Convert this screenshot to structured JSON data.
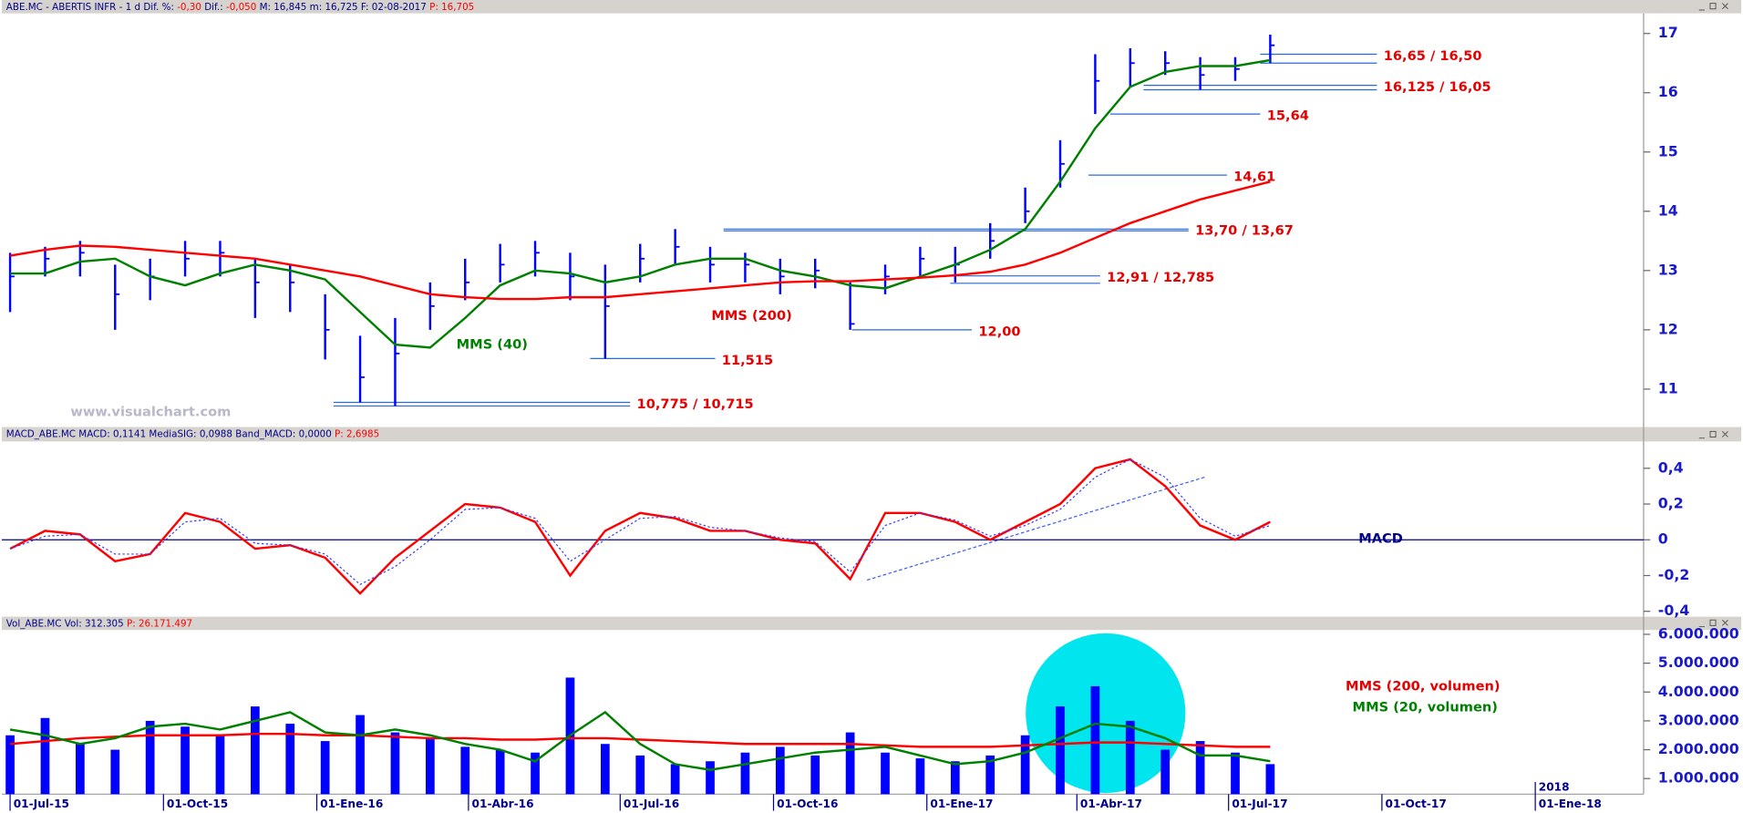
{
  "chart_data": {
    "type": "stock",
    "x": [
      "2015-07-01",
      "2015-07-22",
      "2015-08-12",
      "2015-09-02",
      "2015-09-23",
      "2015-10-14",
      "2015-11-04",
      "2015-11-25",
      "2015-12-16",
      "2016-01-06",
      "2016-01-27",
      "2016-02-17",
      "2016-03-09",
      "2016-03-30",
      "2016-04-20",
      "2016-05-11",
      "2016-06-01",
      "2016-06-22",
      "2016-07-13",
      "2016-08-03",
      "2016-08-24",
      "2016-09-14",
      "2016-10-05",
      "2016-10-26",
      "2016-11-16",
      "2016-12-07",
      "2016-12-28",
      "2017-01-18",
      "2017-02-08",
      "2017-03-01",
      "2017-03-22",
      "2017-04-12",
      "2017-05-03",
      "2017-05-24",
      "2017-06-14",
      "2017-07-05",
      "2017-07-26"
    ],
    "xlim": [
      "2015-06-26",
      "2018-03-07"
    ],
    "xticks": [
      {
        "value": "2015-07-01",
        "label": "01-Jul-15"
      },
      {
        "value": "2015-10-01",
        "label": "01-Oct-15"
      },
      {
        "value": "2016-01-01",
        "label": "01-Ene-16"
      },
      {
        "value": "2016-04-01",
        "label": "01-Abr-16"
      },
      {
        "value": "2016-07-01",
        "label": "01-Jul-16"
      },
      {
        "value": "2016-10-01",
        "label": "01-Oct-16"
      },
      {
        "value": "2017-01-01",
        "label": "01-Ene-17"
      },
      {
        "value": "2017-04-01",
        "label": "01-Abr-17"
      },
      {
        "value": "2017-07-01",
        "label": "01-Jul-17"
      },
      {
        "value": "2017-10-01",
        "label": "01-Oct-17"
      },
      {
        "value": "2018-01-01",
        "label": "01-Ene-18"
      }
    ],
    "year_marker": {
      "value": "2018-01-01",
      "label": "2018"
    },
    "panels": [
      {
        "header": [
          {
            "text": "ABE.MC - ABERTIS INFR - 1 d  Dif. %: ",
            "color": "#00008b"
          },
          {
            "text": "-0,30",
            "color": "#ff0000"
          },
          {
            "text": "  Dif.: ",
            "color": "#00008b"
          },
          {
            "text": "-0,050",
            "color": "#ff0000"
          },
          {
            "text": "  M: 16,845  m: 16,725  F: 02-08-2017  ",
            "color": "#00008b"
          },
          {
            "text": "P: 16,705",
            "color": "#ff0000"
          }
        ],
        "ylim": [
          10.36,
          17.34
        ],
        "yticks": [
          11,
          12,
          13,
          14,
          15,
          16,
          17
        ],
        "watermark": "www.visualchart.com",
        "series": [
          {
            "type": "ohlc",
            "color": "#0000ff",
            "high": [
              13.3,
              13.4,
              13.5,
              13.1,
              13.2,
              13.5,
              13.5,
              13.2,
              13.1,
              12.6,
              11.9,
              12.2,
              12.8,
              13.2,
              13.45,
              13.5,
              13.3,
              13.1,
              13.45,
              13.7,
              13.4,
              13.3,
              13.2,
              13.2,
              12.8,
              13.1,
              13.4,
              13.4,
              13.8,
              14.4,
              15.2,
              16.65,
              16.75,
              16.7,
              16.6,
              16.6,
              16.98
            ],
            "low": [
              12.3,
              12.9,
              12.9,
              12.0,
              12.5,
              12.9,
              12.9,
              12.2,
              12.3,
              11.5,
              10.775,
              10.715,
              12.0,
              12.5,
              12.8,
              12.9,
              12.5,
              11.515,
              12.8,
              13.1,
              12.8,
              12.8,
              12.6,
              12.7,
              12.0,
              12.6,
              12.9,
              12.8,
              13.2,
              13.8,
              14.4,
              15.64,
              16.1,
              16.3,
              16.05,
              16.2,
              16.5
            ],
            "close": [
              12.9,
              13.2,
              13.3,
              12.6,
              12.9,
              13.2,
              13.3,
              12.8,
              12.8,
              12.0,
              11.2,
              11.6,
              12.4,
              12.8,
              13.1,
              13.3,
              12.9,
              12.4,
              13.2,
              13.4,
              13.1,
              13.1,
              12.9,
              13.0,
              12.1,
              12.9,
              13.2,
              13.1,
              13.5,
              14.0,
              14.8,
              16.2,
              16.5,
              16.5,
              16.3,
              16.4,
              16.8
            ]
          },
          {
            "type": "line",
            "name": "MMS (40)",
            "color": "#008000",
            "values": [
              12.95,
              12.95,
              13.15,
              13.2,
              12.9,
              12.75,
              12.95,
              13.1,
              13.0,
              12.85,
              12.3,
              11.75,
              11.7,
              12.2,
              12.75,
              13.0,
              12.95,
              12.8,
              12.9,
              13.1,
              13.2,
              13.2,
              13.0,
              12.9,
              12.75,
              12.7,
              12.9,
              13.1,
              13.35,
              13.7,
              14.5,
              15.4,
              16.1,
              16.35,
              16.45,
              16.45,
              16.55
            ]
          },
          {
            "type": "line",
            "name": "MMS (200)",
            "color": "#ff0000",
            "values": [
              13.25,
              13.35,
              13.42,
              13.4,
              13.35,
              13.3,
              13.25,
              13.2,
              13.1,
              13.0,
              12.9,
              12.75,
              12.6,
              12.55,
              12.52,
              12.52,
              12.55,
              12.55,
              12.6,
              12.65,
              12.7,
              12.75,
              12.8,
              12.82,
              12.82,
              12.85,
              12.88,
              12.92,
              12.98,
              13.1,
              13.3,
              13.55,
              13.8,
              14.0,
              14.2,
              14.35,
              14.5
            ]
          }
        ],
        "levels": [
          {
            "label": "16,65 / 16,50",
            "values": [
              16.65,
              16.5
            ],
            "start": "2017-07-20",
            "end": "2017-09-28"
          },
          {
            "label": "16,125 / 16,05",
            "values": [
              16.125,
              16.05
            ],
            "start": "2017-05-11",
            "end": "2017-09-28"
          },
          {
            "label": "15,64",
            "values": [
              15.64
            ],
            "start": "2017-04-21",
            "end": "2017-07-20"
          },
          {
            "label": "14,61",
            "values": [
              14.61
            ],
            "start": "2017-04-08",
            "end": "2017-06-30"
          },
          {
            "label": "13,70 / 13,67",
            "values": [
              13.7,
              13.67
            ],
            "start": "2016-09-01",
            "end": "2017-06-07"
          },
          {
            "label": "12,91 / 12,785",
            "values": [
              12.91,
              12.785
            ],
            "start": "2017-01-15",
            "end": "2017-04-15"
          },
          {
            "label": "12,00",
            "values": [
              12.0
            ],
            "start": "2016-11-17",
            "end": "2017-01-28"
          },
          {
            "label": "11,515",
            "values": [
              11.515
            ],
            "start": "2016-06-13",
            "end": "2016-08-27"
          },
          {
            "label": "10,775 / 10,715",
            "values": [
              10.775,
              10.715
            ],
            "start": "2016-01-11",
            "end": "2016-07-07"
          }
        ]
      },
      {
        "header": [
          {
            "text": "MACD_ABE.MC  MACD: 0,1141  MediaSIG: 0,0988  Band_MACD: 0,0000  ",
            "color": "#00008b"
          },
          {
            "text": "P: 2,6985",
            "color": "#ff0000"
          }
        ],
        "label": "MACD",
        "ylim": [
          -0.43,
          0.55
        ],
        "yticks": [
          {
            "value": 0.4,
            "label": "0,4"
          },
          {
            "value": 0.2,
            "label": "0,2"
          },
          0,
          {
            "value": -0.2,
            "label": "-0,2"
          },
          {
            "value": -0.4,
            "label": "-0,4"
          }
        ],
        "hline": 0,
        "series": [
          {
            "type": "line",
            "color": "#ff0000",
            "values": [
              -0.05,
              0.05,
              0.03,
              -0.12,
              -0.08,
              0.15,
              0.1,
              -0.05,
              -0.03,
              -0.1,
              -0.3,
              -0.1,
              0.05,
              0.2,
              0.18,
              0.1,
              -0.2,
              0.05,
              0.15,
              0.12,
              0.05,
              0.05,
              0.0,
              -0.02,
              -0.22,
              0.15,
              0.15,
              0.1,
              0.0,
              0.1,
              0.2,
              0.4,
              0.45,
              0.3,
              0.08,
              0.0,
              0.1
            ]
          },
          {
            "type": "line",
            "color": "#3c3cff",
            "dashed": true,
            "values": [
              -0.05,
              0.02,
              0.03,
              -0.08,
              -0.08,
              0.1,
              0.12,
              -0.02,
              -0.03,
              -0.08,
              -0.25,
              -0.15,
              0.0,
              0.17,
              0.18,
              0.12,
              -0.12,
              0.0,
              0.12,
              0.13,
              0.07,
              0.05,
              0.01,
              -0.01,
              -0.18,
              0.08,
              0.15,
              0.11,
              0.02,
              0.08,
              0.17,
              0.35,
              0.45,
              0.35,
              0.12,
              0.02,
              0.08
            ]
          }
        ]
      },
      {
        "header": [
          {
            "text": "Vol_ABE.MC  Vol: 312.305  ",
            "color": "#00008b"
          },
          {
            "text": "P: 26.171.497",
            "color": "#ff0000"
          }
        ],
        "ylim": [
          460000,
          6150000
        ],
        "yticks": [
          {
            "value": 6000000,
            "label": "6.000.000"
          },
          {
            "value": 5000000,
            "label": "5.000.000"
          },
          {
            "value": 4000000,
            "label": "4.000.000"
          },
          {
            "value": 3000000,
            "label": "3.000.000"
          },
          {
            "value": 2000000,
            "label": "2.000.000"
          },
          {
            "value": 1000000,
            "label": "1.000.000"
          }
        ],
        "series": [
          {
            "type": "bar",
            "color": "#0000ff",
            "values": [
              2500000,
              3100000,
              2200000,
              2000000,
              3000000,
              2800000,
              2500000,
              3500000,
              2900000,
              2300000,
              3200000,
              2600000,
              2400000,
              2100000,
              2000000,
              1900000,
              4500000,
              2200000,
              1800000,
              1500000,
              1600000,
              1900000,
              2100000,
              1800000,
              2600000,
              1900000,
              1700000,
              1600000,
              1800000,
              2500000,
              3500000,
              4200000,
              3000000,
              2000000,
              2300000,
              1900000,
              1500000
            ]
          },
          {
            "type": "line",
            "name": "MMS (200, volumen)",
            "color": "#ff0000",
            "values": [
              2200000,
              2300000,
              2400000,
              2450000,
              2500000,
              2500000,
              2500000,
              2550000,
              2550000,
              2500000,
              2500000,
              2450000,
              2400000,
              2400000,
              2350000,
              2350000,
              2400000,
              2400000,
              2350000,
              2300000,
              2250000,
              2200000,
              2200000,
              2200000,
              2200000,
              2150000,
              2100000,
              2100000,
              2100000,
              2150000,
              2200000,
              2250000,
              2250000,
              2200000,
              2150000,
              2100000,
              2100000
            ]
          },
          {
            "type": "line",
            "name": "MMS (20, volumen)",
            "color": "#008000",
            "values": [
              2700000,
              2500000,
              2200000,
              2400000,
              2800000,
              2900000,
              2700000,
              3000000,
              3300000,
              2600000,
              2500000,
              2700000,
              2500000,
              2200000,
              2000000,
              1600000,
              2500000,
              3300000,
              2200000,
              1500000,
              1300000,
              1500000,
              1700000,
              1900000,
              2000000,
              2100000,
              1800000,
              1500000,
              1600000,
              1900000,
              2400000,
              2900000,
              2800000,
              2400000,
              1800000,
              1800000,
              1600000
            ]
          }
        ]
      }
    ]
  }
}
